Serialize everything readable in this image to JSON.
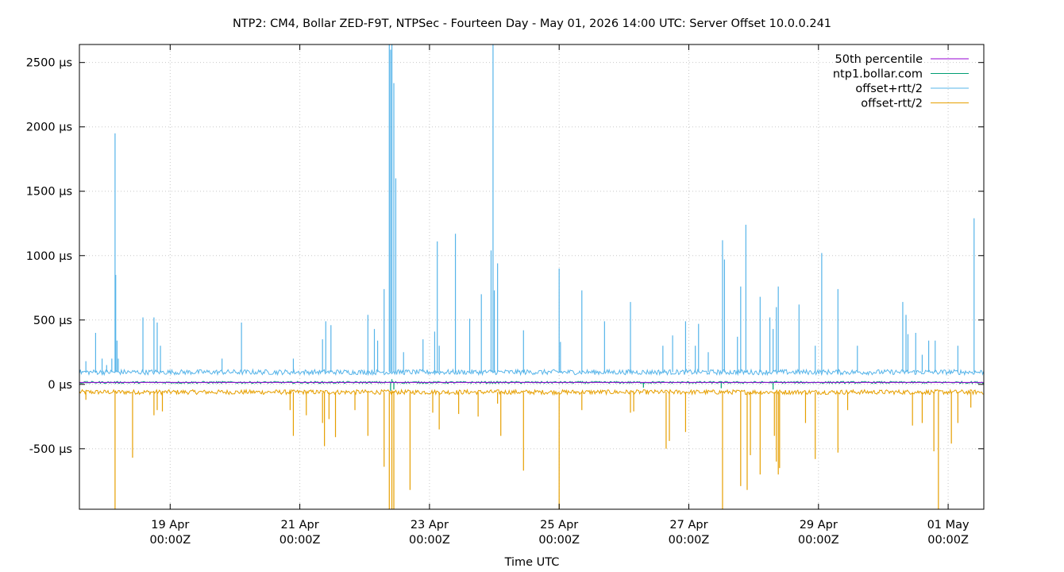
{
  "chart_data": {
    "type": "line",
    "title": "NTP2: CM4, Bollar ZED-F9T, NTPSec - Fourteen Day - May 01, 2026 14:00 UTC: Server Offset 10.0.0.241",
    "xlabel": "Time UTC",
    "ylabel": "",
    "x_range_days": [
      -1.4,
      12.55
    ],
    "ylim": [
      -970,
      2640
    ],
    "grid": true,
    "legend_position": "top-right",
    "y_ticks": [
      {
        "value": 2500,
        "label": "2500 µs"
      },
      {
        "value": 2000,
        "label": "2000 µs"
      },
      {
        "value": 1500,
        "label": "1500 µs"
      },
      {
        "value": 1000,
        "label": "1000 µs"
      },
      {
        "value": 500,
        "label": "500 µs"
      },
      {
        "value": 0,
        "label": "0 µs"
      },
      {
        "value": -500,
        "label": "-500 µs"
      }
    ],
    "x_ticks": [
      {
        "day": 0,
        "date": "19 Apr",
        "time": "00:00Z"
      },
      {
        "day": 2,
        "date": "21 Apr",
        "time": "00:00Z"
      },
      {
        "day": 4,
        "date": "23 Apr",
        "time": "00:00Z"
      },
      {
        "day": 6,
        "date": "25 Apr",
        "time": "00:00Z"
      },
      {
        "day": 8,
        "date": "27 Apr",
        "time": "00:00Z"
      },
      {
        "day": 10,
        "date": "29 Apr",
        "time": "00:00Z"
      },
      {
        "day": 12,
        "date": "01 May",
        "time": "00:00Z"
      }
    ],
    "series": [
      {
        "name": "50th percentile",
        "color": "#9400d3",
        "baseline": 15,
        "noise": 0,
        "spikes": []
      },
      {
        "name": "ntp1.bollar.com",
        "color": "#009e73",
        "baseline": 15,
        "noise": 8,
        "spikes": [
          [
            3.4,
            -50
          ],
          [
            3.42,
            40
          ],
          [
            3.45,
            -40
          ],
          [
            9.3,
            -40
          ],
          [
            9.35,
            30
          ],
          [
            8.5,
            -30
          ],
          [
            7.3,
            -25
          ]
        ]
      },
      {
        "name": "offset+rtt/2",
        "color": "#56b4e9",
        "baseline": 95,
        "noise": 20,
        "spikes": [
          [
            -1.3,
            180
          ],
          [
            -1.15,
            400
          ],
          [
            -1.05,
            200
          ],
          [
            -0.98,
            150
          ],
          [
            -0.9,
            200
          ],
          [
            -0.85,
            1950
          ],
          [
            -0.84,
            850
          ],
          [
            -0.82,
            340
          ],
          [
            -0.8,
            200
          ],
          [
            -0.42,
            520
          ],
          [
            -0.25,
            520
          ],
          [
            -0.2,
            480
          ],
          [
            -0.15,
            300
          ],
          [
            0.8,
            200
          ],
          [
            1.1,
            480
          ],
          [
            1.9,
            200
          ],
          [
            2.35,
            350
          ],
          [
            2.4,
            490
          ],
          [
            2.48,
            460
          ],
          [
            3.05,
            540
          ],
          [
            3.15,
            430
          ],
          [
            3.2,
            340
          ],
          [
            3.3,
            740
          ],
          [
            3.38,
            2640
          ],
          [
            3.4,
            2600
          ],
          [
            3.42,
            2640
          ],
          [
            3.45,
            2340
          ],
          [
            3.48,
            1600
          ],
          [
            3.6,
            250
          ],
          [
            3.9,
            350
          ],
          [
            4.08,
            410
          ],
          [
            4.12,
            1110
          ],
          [
            4.15,
            300
          ],
          [
            4.4,
            1170
          ],
          [
            4.62,
            510
          ],
          [
            4.8,
            700
          ],
          [
            4.95,
            1040
          ],
          [
            4.98,
            2640
          ],
          [
            5.0,
            730
          ],
          [
            5.05,
            940
          ],
          [
            5.45,
            420
          ],
          [
            6.0,
            900
          ],
          [
            6.02,
            330
          ],
          [
            6.35,
            730
          ],
          [
            6.7,
            490
          ],
          [
            7.1,
            640
          ],
          [
            7.6,
            300
          ],
          [
            7.75,
            380
          ],
          [
            7.95,
            490
          ],
          [
            8.1,
            300
          ],
          [
            8.15,
            470
          ],
          [
            8.3,
            250
          ],
          [
            8.52,
            1120
          ],
          [
            8.55,
            970
          ],
          [
            8.75,
            370
          ],
          [
            8.8,
            760
          ],
          [
            8.88,
            1240
          ],
          [
            9.1,
            680
          ],
          [
            9.25,
            520
          ],
          [
            9.3,
            430
          ],
          [
            9.35,
            600
          ],
          [
            9.38,
            760
          ],
          [
            9.7,
            620
          ],
          [
            9.95,
            300
          ],
          [
            10.05,
            1020
          ],
          [
            10.3,
            740
          ],
          [
            10.6,
            300
          ],
          [
            11.3,
            640
          ],
          [
            11.35,
            540
          ],
          [
            11.38,
            390
          ],
          [
            11.5,
            400
          ],
          [
            11.6,
            230
          ],
          [
            11.7,
            340
          ],
          [
            11.8,
            340
          ],
          [
            12.15,
            300
          ],
          [
            12.4,
            1290
          ]
        ]
      },
      {
        "name": "offset-rtt/2",
        "color": "#e69f00",
        "baseline": -60,
        "noise": 18,
        "spikes": [
          [
            -1.3,
            -120
          ],
          [
            -0.85,
            -970
          ],
          [
            -0.58,
            -570
          ],
          [
            -0.25,
            -240
          ],
          [
            -0.2,
            -200
          ],
          [
            -0.12,
            -210
          ],
          [
            1.85,
            -200
          ],
          [
            1.9,
            -400
          ],
          [
            2.1,
            -240
          ],
          [
            2.35,
            -300
          ],
          [
            2.38,
            -480
          ],
          [
            2.45,
            -270
          ],
          [
            2.55,
            -410
          ],
          [
            2.85,
            -200
          ],
          [
            3.05,
            -400
          ],
          [
            3.3,
            -640
          ],
          [
            3.38,
            -970
          ],
          [
            3.42,
            -970
          ],
          [
            3.45,
            -970
          ],
          [
            3.7,
            -820
          ],
          [
            4.15,
            -350
          ],
          [
            4.05,
            -220
          ],
          [
            4.45,
            -230
          ],
          [
            4.75,
            -250
          ],
          [
            5.05,
            -150
          ],
          [
            5.1,
            -400
          ],
          [
            5.45,
            -670
          ],
          [
            6.0,
            -970
          ],
          [
            6.35,
            -200
          ],
          [
            7.1,
            -220
          ],
          [
            7.15,
            -210
          ],
          [
            7.65,
            -500
          ],
          [
            7.7,
            -440
          ],
          [
            7.95,
            -370
          ],
          [
            8.52,
            -970
          ],
          [
            8.8,
            -790
          ],
          [
            8.9,
            -820
          ],
          [
            8.95,
            -550
          ],
          [
            9.1,
            -700
          ],
          [
            9.32,
            -400
          ],
          [
            9.35,
            -600
          ],
          [
            9.38,
            -700
          ],
          [
            9.4,
            -650
          ],
          [
            9.8,
            -300
          ],
          [
            9.95,
            -580
          ],
          [
            10.3,
            -530
          ],
          [
            10.45,
            -200
          ],
          [
            11.45,
            -320
          ],
          [
            11.6,
            -300
          ],
          [
            11.78,
            -520
          ],
          [
            11.85,
            -970
          ],
          [
            12.05,
            -460
          ],
          [
            12.15,
            -300
          ],
          [
            12.35,
            -180
          ]
        ]
      }
    ]
  }
}
